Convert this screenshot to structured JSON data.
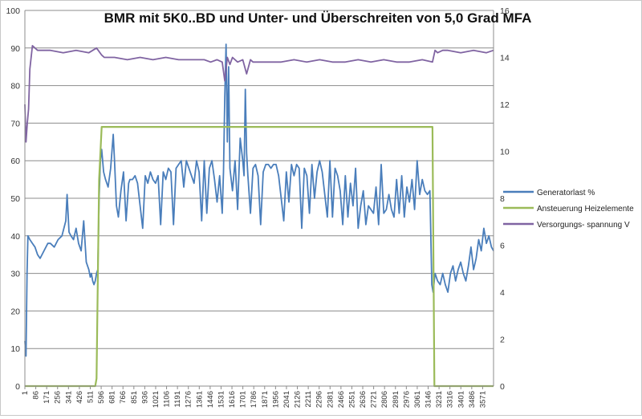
{
  "chart_data": {
    "type": "line",
    "title": "BMR mit 5K0..BD und Unter- und Überschreiten von 5,0 Grad MFA",
    "xlabel": "",
    "ylabel_left": "",
    "ylabel_right": "",
    "x_range": [
      1,
      3656
    ],
    "x_tick_labels": [
      "1",
      "86",
      "171",
      "256",
      "341",
      "426",
      "511",
      "596",
      "681",
      "766",
      "851",
      "936",
      "1021",
      "1106",
      "1191",
      "1276",
      "1361",
      "1446",
      "1531",
      "1616",
      "1701",
      "1786",
      "1871",
      "1956",
      "2041",
      "2126",
      "2211",
      "2296",
      "2381",
      "2466",
      "2551",
      "2636",
      "2721",
      "2806",
      "2891",
      "2976",
      "3061",
      "3146",
      "3231",
      "3316",
      "3401",
      "3486",
      "3571"
    ],
    "y_left": {
      "min": 0,
      "max": 100,
      "ticks": [
        0,
        10,
        20,
        30,
        40,
        50,
        60,
        70,
        80,
        90,
        100
      ]
    },
    "y_right": {
      "min": 0,
      "max": 16,
      "ticks": [
        0,
        2,
        4,
        6,
        8,
        10,
        12,
        14,
        16
      ]
    },
    "grid": "horizontal",
    "legend_position": "right",
    "series": [
      {
        "name": "Generatorlast  %",
        "axis": "left",
        "color": "#4a7ebb",
        "x": [
          1,
          10,
          18,
          25,
          40,
          60,
          80,
          100,
          120,
          150,
          180,
          200,
          230,
          260,
          290,
          320,
          330,
          345,
          360,
          380,
          400,
          420,
          440,
          460,
          480,
          500,
          511,
          520,
          530,
          540,
          550,
          560,
          570,
          580,
          590,
          600,
          615,
          630,
          650,
          670,
          690,
          700,
          715,
          730,
          750,
          770,
          790,
          810,
          820,
          840,
          860,
          880,
          900,
          920,
          940,
          960,
          980,
          1000,
          1020,
          1040,
          1060,
          1080,
          1100,
          1120,
          1140,
          1160,
          1180,
          1200,
          1220,
          1240,
          1260,
          1280,
          1300,
          1320,
          1340,
          1360,
          1380,
          1400,
          1420,
          1440,
          1460,
          1480,
          1500,
          1520,
          1540,
          1550,
          1560,
          1570,
          1580,
          1590,
          1600,
          1620,
          1640,
          1660,
          1680,
          1700,
          1710,
          1720,
          1730,
          1740,
          1760,
          1780,
          1800,
          1820,
          1840,
          1860,
          1880,
          1900,
          1920,
          1940,
          1960,
          1980,
          2000,
          2020,
          2040,
          2060,
          2080,
          2100,
          2120,
          2140,
          2160,
          2180,
          2200,
          2220,
          2240,
          2260,
          2280,
          2300,
          2320,
          2340,
          2360,
          2380,
          2400,
          2420,
          2440,
          2460,
          2480,
          2500,
          2520,
          2540,
          2560,
          2580,
          2600,
          2620,
          2640,
          2660,
          2680,
          2700,
          2720,
          2740,
          2760,
          2780,
          2800,
          2820,
          2840,
          2860,
          2880,
          2900,
          2920,
          2940,
          2960,
          2980,
          3000,
          3020,
          3040,
          3060,
          3080,
          3100,
          3120,
          3140,
          3160,
          3175,
          3185,
          3200,
          3220,
          3240,
          3260,
          3280,
          3300,
          3320,
          3340,
          3360,
          3380,
          3400,
          3420,
          3440,
          3460,
          3480,
          3500,
          3520,
          3540,
          3560,
          3580,
          3600,
          3620,
          3640,
          3656
        ],
        "values": [
          12,
          8,
          30,
          40,
          39,
          38,
          37,
          35,
          34,
          36,
          38,
          38,
          37,
          39,
          40,
          44,
          51,
          41,
          40,
          39,
          42,
          38,
          36,
          44,
          33,
          31,
          29,
          30,
          28,
          27,
          28,
          30,
          31,
          50,
          60,
          63,
          57,
          55,
          53,
          58,
          67,
          60,
          48,
          45,
          52,
          57,
          44,
          54,
          55,
          55,
          56,
          54,
          48,
          42,
          56,
          54,
          57,
          55,
          54,
          56,
          43,
          57,
          55,
          58,
          57,
          43,
          58,
          59,
          60,
          53,
          60,
          58,
          56,
          54,
          60,
          57,
          44,
          60,
          46,
          58,
          60,
          55,
          49,
          56,
          46,
          57,
          77,
          91,
          65,
          85,
          58,
          52,
          60,
          47,
          66,
          60,
          56,
          79,
          62,
          56,
          46,
          58,
          59,
          56,
          43,
          57,
          59,
          59,
          58,
          59,
          59,
          56,
          50,
          44,
          57,
          49,
          59,
          56,
          59,
          58,
          42,
          58,
          56,
          46,
          59,
          50,
          57,
          60,
          57,
          51,
          45,
          60,
          45,
          58,
          56,
          52,
          43,
          56,
          45,
          54,
          48,
          58,
          42,
          48,
          52,
          43,
          48,
          47,
          46,
          53,
          43,
          59,
          46,
          47,
          51,
          47,
          45,
          55,
          46,
          56,
          45,
          53,
          49,
          55,
          47,
          60,
          51,
          55,
          52,
          51,
          52,
          27,
          25,
          30,
          28,
          27,
          30,
          27,
          25,
          30,
          32,
          28,
          31,
          33,
          30,
          28,
          32,
          37,
          31,
          34,
          39,
          36,
          42,
          38,
          40,
          37,
          36
        ],
        "note": ""
      },
      {
        "name": "Ansteuerung Heizelemente",
        "axis": "left",
        "color": "#9bbb59",
        "x": [
          1,
          550,
          560,
          580,
          600,
          3180,
          3195,
          3656
        ],
        "values": [
          0,
          0,
          2,
          55,
          69,
          69,
          0,
          0
        ]
      },
      {
        "name": "Versorgungs- spannung  V",
        "axis": "right",
        "color": "#8064a2",
        "x": [
          1,
          10,
          20,
          30,
          40,
          60,
          80,
          100,
          200,
          300,
          400,
          500,
          560,
          600,
          620,
          700,
          800,
          900,
          1000,
          1100,
          1200,
          1300,
          1400,
          1450,
          1500,
          1540,
          1560,
          1580,
          1600,
          1620,
          1660,
          1700,
          1730,
          1760,
          1780,
          1800,
          1900,
          2000,
          2100,
          2200,
          2300,
          2400,
          2500,
          2600,
          2700,
          2800,
          2900,
          3000,
          3100,
          3180,
          3200,
          3220,
          3260,
          3300,
          3400,
          3500,
          3600,
          3656
        ],
        "values": [
          12,
          10.4,
          11.2,
          11.8,
          13.5,
          14.5,
          14.4,
          14.3,
          14.3,
          14.2,
          14.3,
          14.2,
          14.4,
          14.1,
          14.0,
          14.0,
          13.9,
          14.0,
          13.9,
          14.0,
          13.9,
          13.9,
          13.9,
          13.8,
          13.9,
          13.8,
          13.0,
          14.0,
          13.7,
          14.0,
          13.8,
          13.9,
          13.3,
          13.9,
          13.8,
          13.8,
          13.8,
          13.8,
          13.9,
          13.8,
          13.9,
          13.8,
          13.8,
          13.9,
          13.8,
          13.9,
          13.8,
          13.8,
          13.9,
          13.8,
          14.3,
          14.2,
          14.3,
          14.3,
          14.2,
          14.3,
          14.2,
          14.3
        ]
      }
    ]
  }
}
